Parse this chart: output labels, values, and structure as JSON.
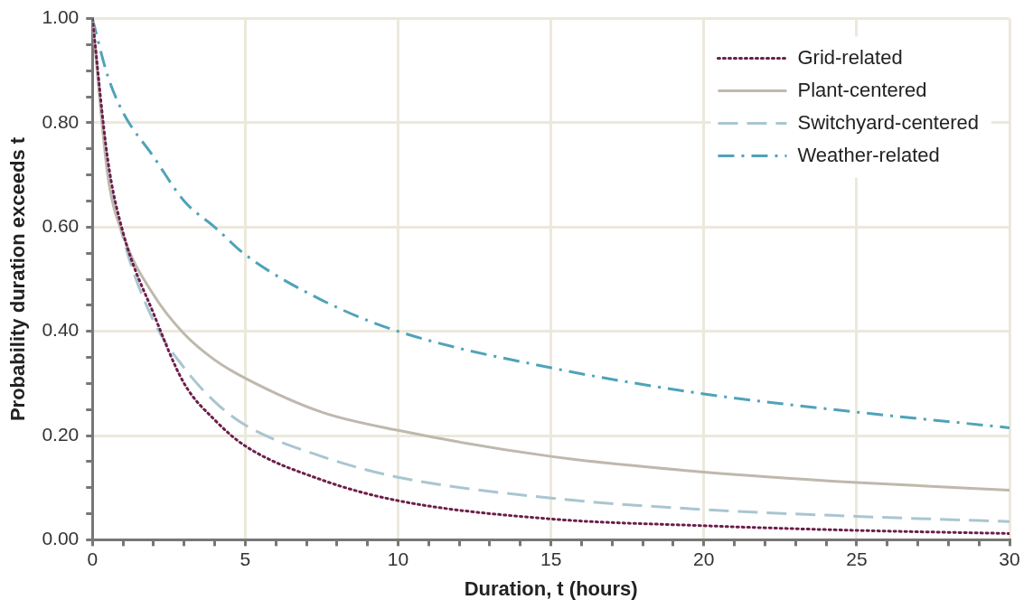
{
  "chart_data": {
    "type": "line",
    "xlabel": "Duration, t (hours)",
    "ylabel": "Probability duration exceeds t",
    "xlim": [
      0,
      30
    ],
    "ylim": [
      0,
      1
    ],
    "xticks": [
      0,
      {
        "value": 1,
        "label": null
      },
      {
        "value": 2,
        "label": null
      },
      {
        "value": 3,
        "label": null
      },
      {
        "value": 4,
        "label": null
      },
      5,
      {
        "value": 6,
        "label": null
      },
      {
        "value": 7,
        "label": null
      },
      {
        "value": 8,
        "label": null
      },
      {
        "value": 9,
        "label": null
      },
      10,
      {
        "value": 11,
        "label": null
      },
      {
        "value": 12,
        "label": null
      },
      {
        "value": 13,
        "label": null
      },
      {
        "value": 14,
        "label": null
      },
      15,
      {
        "value": 16,
        "label": null
      },
      {
        "value": 17,
        "label": null
      },
      {
        "value": 18,
        "label": null
      },
      {
        "value": 19,
        "label": null
      },
      20,
      {
        "value": 21,
        "label": null
      },
      {
        "value": 22,
        "label": null
      },
      {
        "value": 23,
        "label": null
      },
      {
        "value": 24,
        "label": null
      },
      25,
      {
        "value": 26,
        "label": null
      },
      {
        "value": 27,
        "label": null
      },
      {
        "value": 28,
        "label": null
      },
      {
        "value": 29,
        "label": null
      },
      30
    ],
    "yticks": [
      {
        "value": 0,
        "label": "0.00"
      },
      {
        "value": 0.05,
        "label": null
      },
      {
        "value": 0.1,
        "label": null
      },
      {
        "value": 0.15,
        "label": null
      },
      {
        "value": 0.2,
        "label": "0.20"
      },
      {
        "value": 0.25,
        "label": null
      },
      {
        "value": 0.3,
        "label": null
      },
      {
        "value": 0.35,
        "label": null
      },
      {
        "value": 0.4,
        "label": "0.40"
      },
      {
        "value": 0.45,
        "label": null
      },
      {
        "value": 0.5,
        "label": null
      },
      {
        "value": 0.55,
        "label": null
      },
      {
        "value": 0.6,
        "label": "0.60"
      },
      {
        "value": 0.65,
        "label": null
      },
      {
        "value": 0.7,
        "label": null
      },
      {
        "value": 0.75,
        "label": null
      },
      {
        "value": 0.8,
        "label": "0.80"
      },
      {
        "value": 0.85,
        "label": null
      },
      {
        "value": 0.9,
        "label": null
      },
      {
        "value": 0.95,
        "label": null
      },
      {
        "value": 1,
        "label": "1.00"
      }
    ],
    "grid": true,
    "legend": "top right",
    "marker": "none",
    "x": [
      0,
      0.5,
      1,
      2,
      3,
      4,
      5,
      7.5,
      10,
      15,
      20,
      25,
      30
    ],
    "series": [
      {
        "name": "Grid-related",
        "color": "#6b1f4a",
        "line_style": "dotted",
        "values": [
          1,
          0.73,
          0.59,
          0.434,
          0.3,
          0.23,
          0.18,
          0.115,
          0.075,
          0.04,
          0.027,
          0.018,
          0.012
        ]
      },
      {
        "name": "Plant-centered",
        "color": "#bfb8ad",
        "line_style": "solid",
        "values": [
          1,
          0.7,
          0.585,
          0.47,
          0.395,
          0.345,
          0.31,
          0.245,
          0.21,
          0.16,
          0.13,
          0.11,
          0.095
        ]
      },
      {
        "name": "Switchyard-centered",
        "color": "#a9c6d0",
        "line_style": "dashed",
        "values": [
          1,
          0.72,
          0.58,
          0.42,
          0.33,
          0.265,
          0.22,
          0.16,
          0.12,
          0.08,
          0.058,
          0.045,
          0.035
        ]
      },
      {
        "name": "Weather-related",
        "color": "#4fa3b8",
        "line_style": "dashdot",
        "values": [
          1,
          0.89,
          0.82,
          0.735,
          0.65,
          0.6,
          0.547,
          0.46,
          0.4,
          0.33,
          0.28,
          0.245,
          0.215
        ]
      }
    ]
  }
}
